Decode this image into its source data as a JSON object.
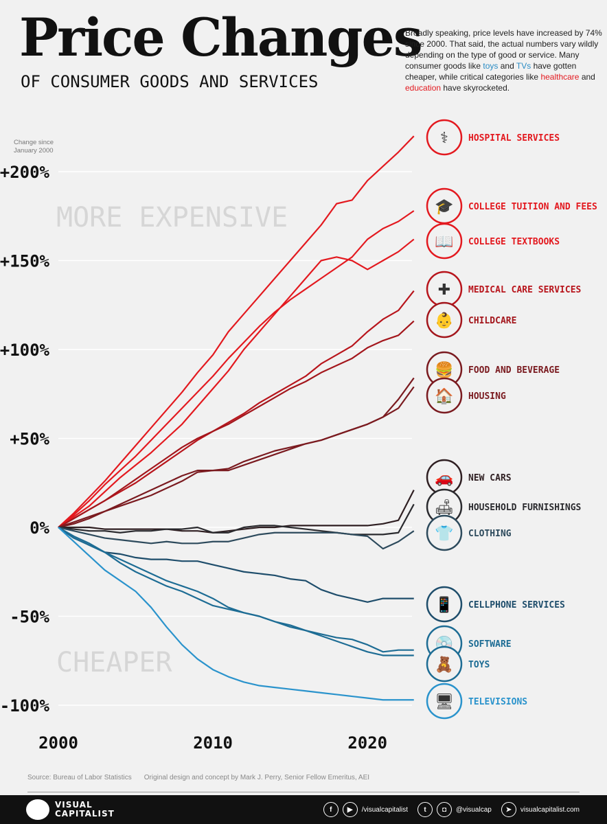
{
  "header": {
    "title": "Price Changes",
    "subtitle": "OF CONSUMER GOODS AND SERVICES",
    "intro": [
      "Broadly speaking, price levels have increased by 74% since 2000. That said, the actual numbers vary wildly depending on the type of good or service. Many consumer goods like ",
      "toys",
      " and ",
      "TVs",
      " have gotten cheaper, while critical categories like ",
      "healthcare",
      " and ",
      "education",
      " have skyrocketed."
    ]
  },
  "chart_data": {
    "type": "line",
    "ylabel": "Change since January 2000",
    "yticks": [
      "+200%",
      "+150%",
      "+100%",
      "+50%",
      "0%",
      "-50%",
      "-100%"
    ],
    "ytick_values": [
      200,
      150,
      100,
      50,
      0,
      -50,
      -100
    ],
    "xticks": [
      "2000",
      "2010",
      "2020"
    ],
    "xtick_values": [
      2000,
      2010,
      2020
    ],
    "xlim": [
      2000,
      2023
    ],
    "ylim": [
      -110,
      225
    ],
    "grid": true,
    "annotations": [
      "MORE EXPENSIVE",
      "CHEAPER"
    ],
    "x": [
      2000,
      2001,
      2002,
      2003,
      2004,
      2005,
      2006,
      2007,
      2008,
      2009,
      2010,
      2011,
      2012,
      2013,
      2014,
      2015,
      2016,
      2017,
      2018,
      2019,
      2020,
      2021,
      2022,
      2023
    ],
    "series": [
      {
        "name": "HOSPITAL SERVICES",
        "color": "#e3191f",
        "icon": "iv-drip-icon",
        "glyph": "⚕",
        "values": [
          0,
          8,
          17,
          26,
          36,
          46,
          56,
          66,
          76,
          87,
          97,
          110,
          120,
          130,
          140,
          150,
          160,
          170,
          182,
          184,
          195,
          203,
          211,
          220
        ]
      },
      {
        "name": "COLLEGE TUITION AND FEES",
        "color": "#e3191f",
        "icon": "graduation-cap-icon",
        "glyph": "🎓",
        "values": [
          0,
          7,
          15,
          24,
          32,
          40,
          49,
          58,
          67,
          76,
          85,
          95,
          104,
          113,
          121,
          128,
          134,
          140,
          146,
          152,
          162,
          168,
          172,
          178
        ]
      },
      {
        "name": "COLLEGE TEXTBOOKS",
        "color": "#e3191f",
        "icon": "book-icon",
        "glyph": "📖",
        "values": [
          0,
          6,
          12,
          20,
          28,
          35,
          42,
          50,
          58,
          68,
          78,
          88,
          100,
          110,
          120,
          130,
          140,
          150,
          152,
          150,
          145,
          150,
          155,
          162
        ]
      },
      {
        "name": "MEDICAL CARE SERVICES",
        "color": "#b8151c",
        "icon": "medical-kit-icon",
        "glyph": "✚",
        "values": [
          0,
          5,
          10,
          15,
          20,
          25,
          31,
          37,
          43,
          49,
          54,
          59,
          64,
          70,
          75,
          80,
          85,
          92,
          97,
          102,
          110,
          117,
          122,
          133
        ]
      },
      {
        "name": "CHILDCARE",
        "color": "#a3161c",
        "icon": "stroller-icon",
        "glyph": "👶",
        "values": [
          0,
          5,
          10,
          15,
          21,
          27,
          33,
          39,
          45,
          50,
          54,
          58,
          63,
          68,
          73,
          78,
          82,
          87,
          91,
          95,
          101,
          105,
          108,
          116
        ]
      },
      {
        "name": "FOOD AND BEVERAGE",
        "color": "#7a1a1f",
        "icon": "food-icon",
        "glyph": "🍔",
        "values": [
          0,
          3,
          6,
          9,
          12,
          15,
          18,
          22,
          26,
          31,
          32,
          32,
          35,
          38,
          41,
          44,
          47,
          49,
          52,
          55,
          58,
          62,
          72,
          84
        ]
      },
      {
        "name": "HOUSING",
        "color": "#7a1a1f",
        "icon": "house-icon",
        "glyph": "🏠",
        "values": [
          0,
          2,
          5,
          9,
          13,
          17,
          21,
          25,
          29,
          32,
          32,
          33,
          37,
          40,
          43,
          45,
          47,
          49,
          52,
          55,
          58,
          62,
          67,
          79
        ]
      },
      {
        "name": "NEW CARS",
        "color": "#2f1f22",
        "icon": "car-icon",
        "glyph": "🚗",
        "values": [
          0,
          0,
          0,
          -1,
          -1,
          -1,
          -1,
          -1,
          -2,
          -2,
          -3,
          -2,
          -1,
          0,
          0,
          1,
          1,
          1,
          1,
          1,
          1,
          2,
          4,
          21
        ]
      },
      {
        "name": "HOUSEHOLD FURNISHINGS",
        "color": "#2a2a2e",
        "icon": "sofa-icon",
        "glyph": "🛋",
        "values": [
          0,
          -1,
          -2,
          -2,
          -3,
          -2,
          -2,
          -1,
          -1,
          0,
          -3,
          -3,
          0,
          1,
          1,
          0,
          -1,
          -2,
          -3,
          -4,
          -4,
          -4,
          -3,
          13
        ]
      },
      {
        "name": "CLOTHING",
        "color": "#2d4a5c",
        "icon": "shirt-icon",
        "glyph": "👕",
        "values": [
          0,
          -2,
          -4,
          -6,
          -7,
          -8,
          -9,
          -8,
          -9,
          -9,
          -8,
          -8,
          -6,
          -4,
          -3,
          -3,
          -3,
          -3,
          -3,
          -4,
          -5,
          -12,
          -8,
          -2
        ]
      },
      {
        "name": "CELLPHONE SERVICES",
        "color": "#1e4d6b",
        "icon": "cellphone-icon",
        "glyph": "📱",
        "values": [
          0,
          -6,
          -10,
          -14,
          -15,
          -17,
          -18,
          -18,
          -19,
          -19,
          -21,
          -23,
          -25,
          -26,
          -27,
          -29,
          -30,
          -35,
          -38,
          -40,
          -42,
          -40,
          -40,
          -40
        ]
      },
      {
        "name": "SOFTWARE",
        "color": "#1d6c94",
        "icon": "software-icon",
        "glyph": "💿",
        "values": [
          0,
          -6,
          -10,
          -14,
          -18,
          -22,
          -26,
          -30,
          -33,
          -36,
          -40,
          -45,
          -48,
          -50,
          -53,
          -56,
          -58,
          -60,
          -62,
          -63,
          -66,
          -70,
          -69,
          -69
        ]
      },
      {
        "name": "TOYS",
        "color": "#1d6c94",
        "icon": "toy-car-icon",
        "glyph": "🧸",
        "values": [
          0,
          -5,
          -9,
          -14,
          -20,
          -25,
          -29,
          -33,
          -36,
          -40,
          -44,
          -46,
          -48,
          -50,
          -53,
          -55,
          -58,
          -61,
          -64,
          -67,
          -70,
          -72,
          -72,
          -72
        ]
      },
      {
        "name": "TELEVISIONS",
        "color": "#2a93cc",
        "icon": "television-icon",
        "glyph": "🖥",
        "values": [
          0,
          -8,
          -16,
          -24,
          -30,
          -36,
          -45,
          -56,
          -66,
          -74,
          -80,
          -84,
          -87,
          -89,
          -90,
          -91,
          -92,
          -93,
          -94,
          -95,
          -96,
          -97,
          -97,
          -97
        ]
      }
    ]
  },
  "footer": {
    "source": "Source: Bureau of Labor Statistics",
    "credit": "Original design and concept by Mark J. Perry, Senior Fellow Emeritus, AEI",
    "brand": [
      "VISUAL",
      "CAPITALIST"
    ],
    "social_handle": "/visualcapitalist",
    "handle": "@visualcap",
    "website": "visualcapitalist.com"
  }
}
